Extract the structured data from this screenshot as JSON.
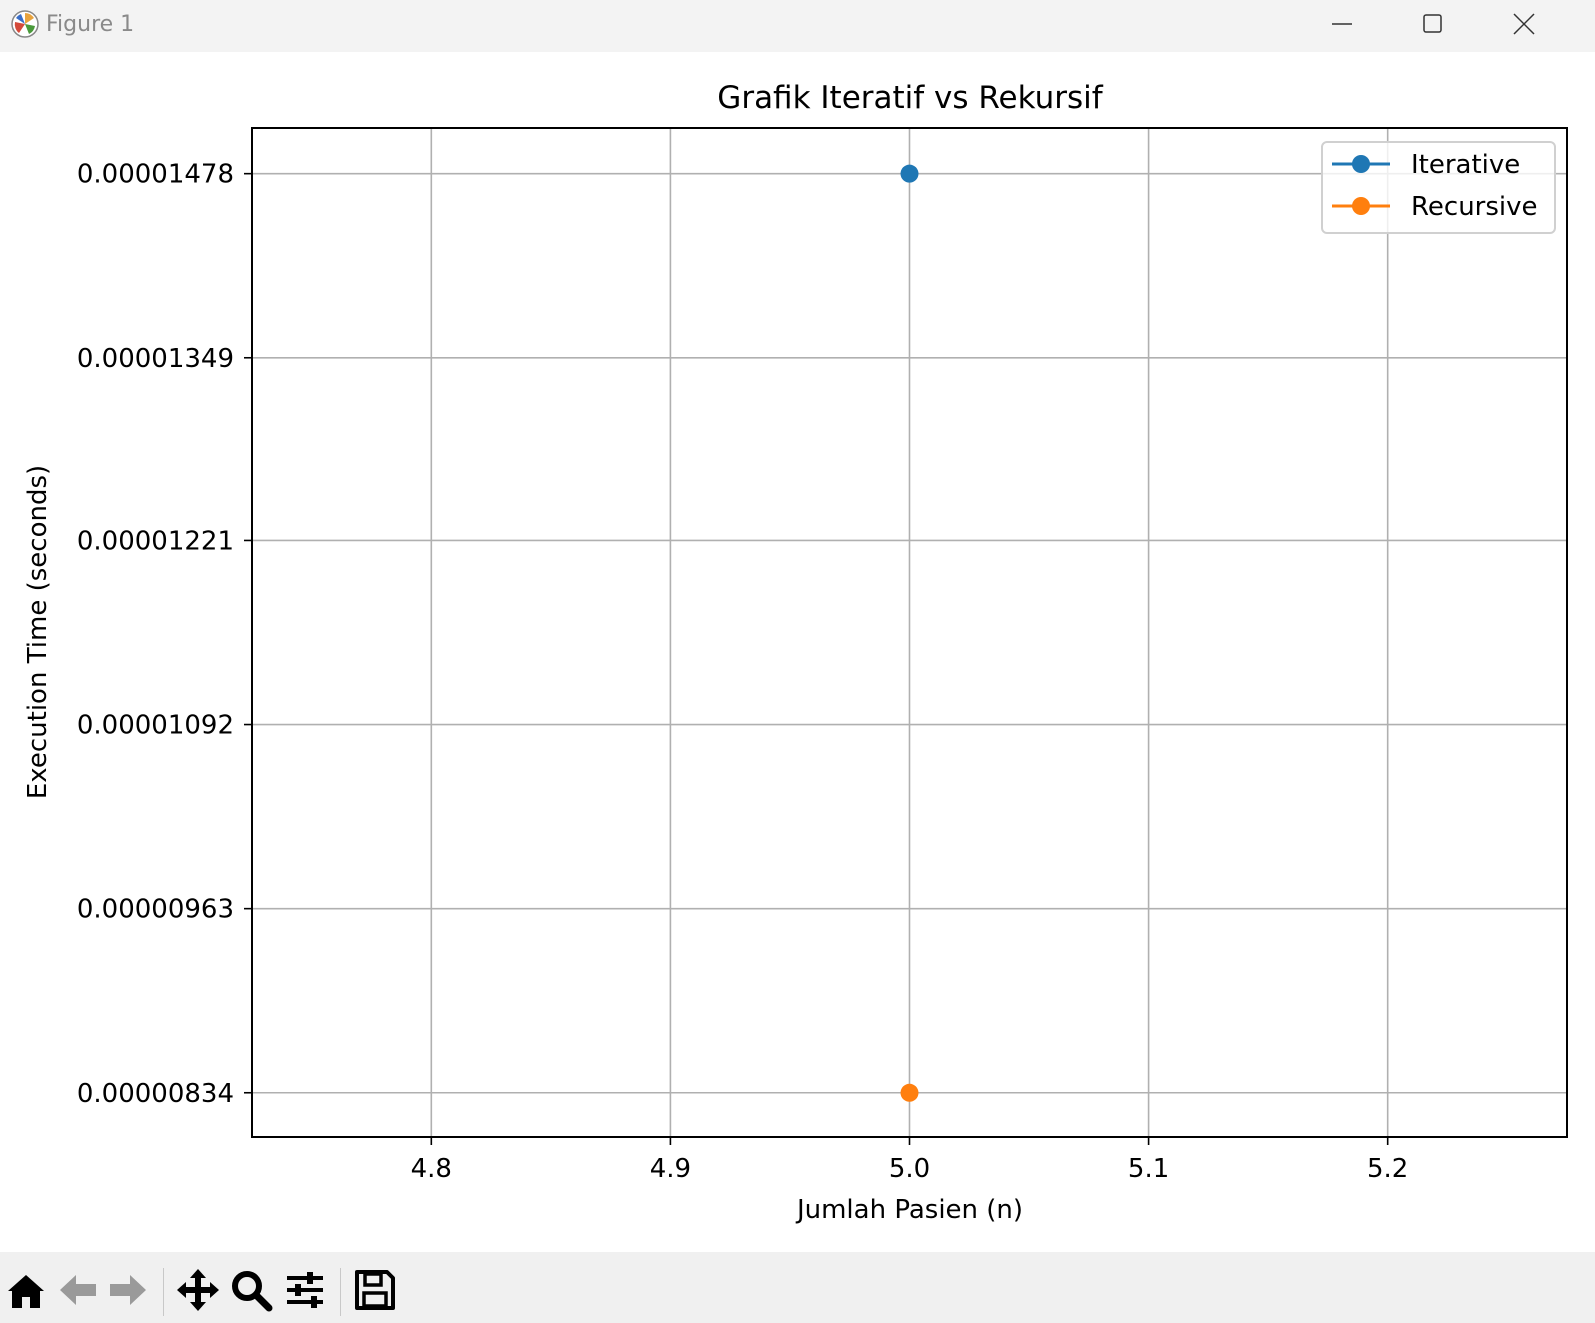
{
  "window": {
    "title": "Figure 1",
    "icon": "matplotlib-icon",
    "controls": [
      "minimize-icon",
      "maximize-icon",
      "close-icon"
    ]
  },
  "toolbar": {
    "buttons": [
      {
        "name": "home",
        "icon": "home-icon"
      },
      {
        "name": "back",
        "icon": "arrow-left-icon"
      },
      {
        "name": "forward",
        "icon": "arrow-right-icon"
      },
      {
        "name": "pan",
        "icon": "move-icon"
      },
      {
        "name": "zoom",
        "icon": "magnifier-icon"
      },
      {
        "name": "configure-subplots",
        "icon": "sliders-icon"
      },
      {
        "name": "save",
        "icon": "floppy-disk-icon"
      }
    ]
  },
  "chart_data": {
    "type": "line",
    "title": "Grafik Iteratif vs Rekursif",
    "xlabel": "Jumlah Pasien (n)",
    "ylabel": "Execution Time (seconds)",
    "xlim": [
      4.725,
      5.275
    ],
    "ylim": [
      8.03e-06,
      1.51e-05
    ],
    "xticks": [
      4.8,
      4.9,
      5.0,
      5.1,
      5.2
    ],
    "xtick_labels": [
      "4.8",
      "4.9",
      "5.0",
      "5.1",
      "5.2"
    ],
    "yticks": [
      8.34e-06,
      9.63e-06,
      1.092e-05,
      1.221e-05,
      1.349e-05,
      1.478e-05
    ],
    "ytick_labels": [
      "0.00000834",
      "0.00000963",
      "0.00001092",
      "0.00001221",
      "0.00001349",
      "0.00001478"
    ],
    "grid": true,
    "legend_position": "top-right",
    "series": [
      {
        "name": "Iterative",
        "color": "#1f77b4",
        "x": [
          5.0
        ],
        "y": [
          1.478e-05
        ]
      },
      {
        "name": "Recursive",
        "color": "#ff7f0e",
        "x": [
          5.0
        ],
        "y": [
          8.34e-06
        ]
      }
    ]
  }
}
